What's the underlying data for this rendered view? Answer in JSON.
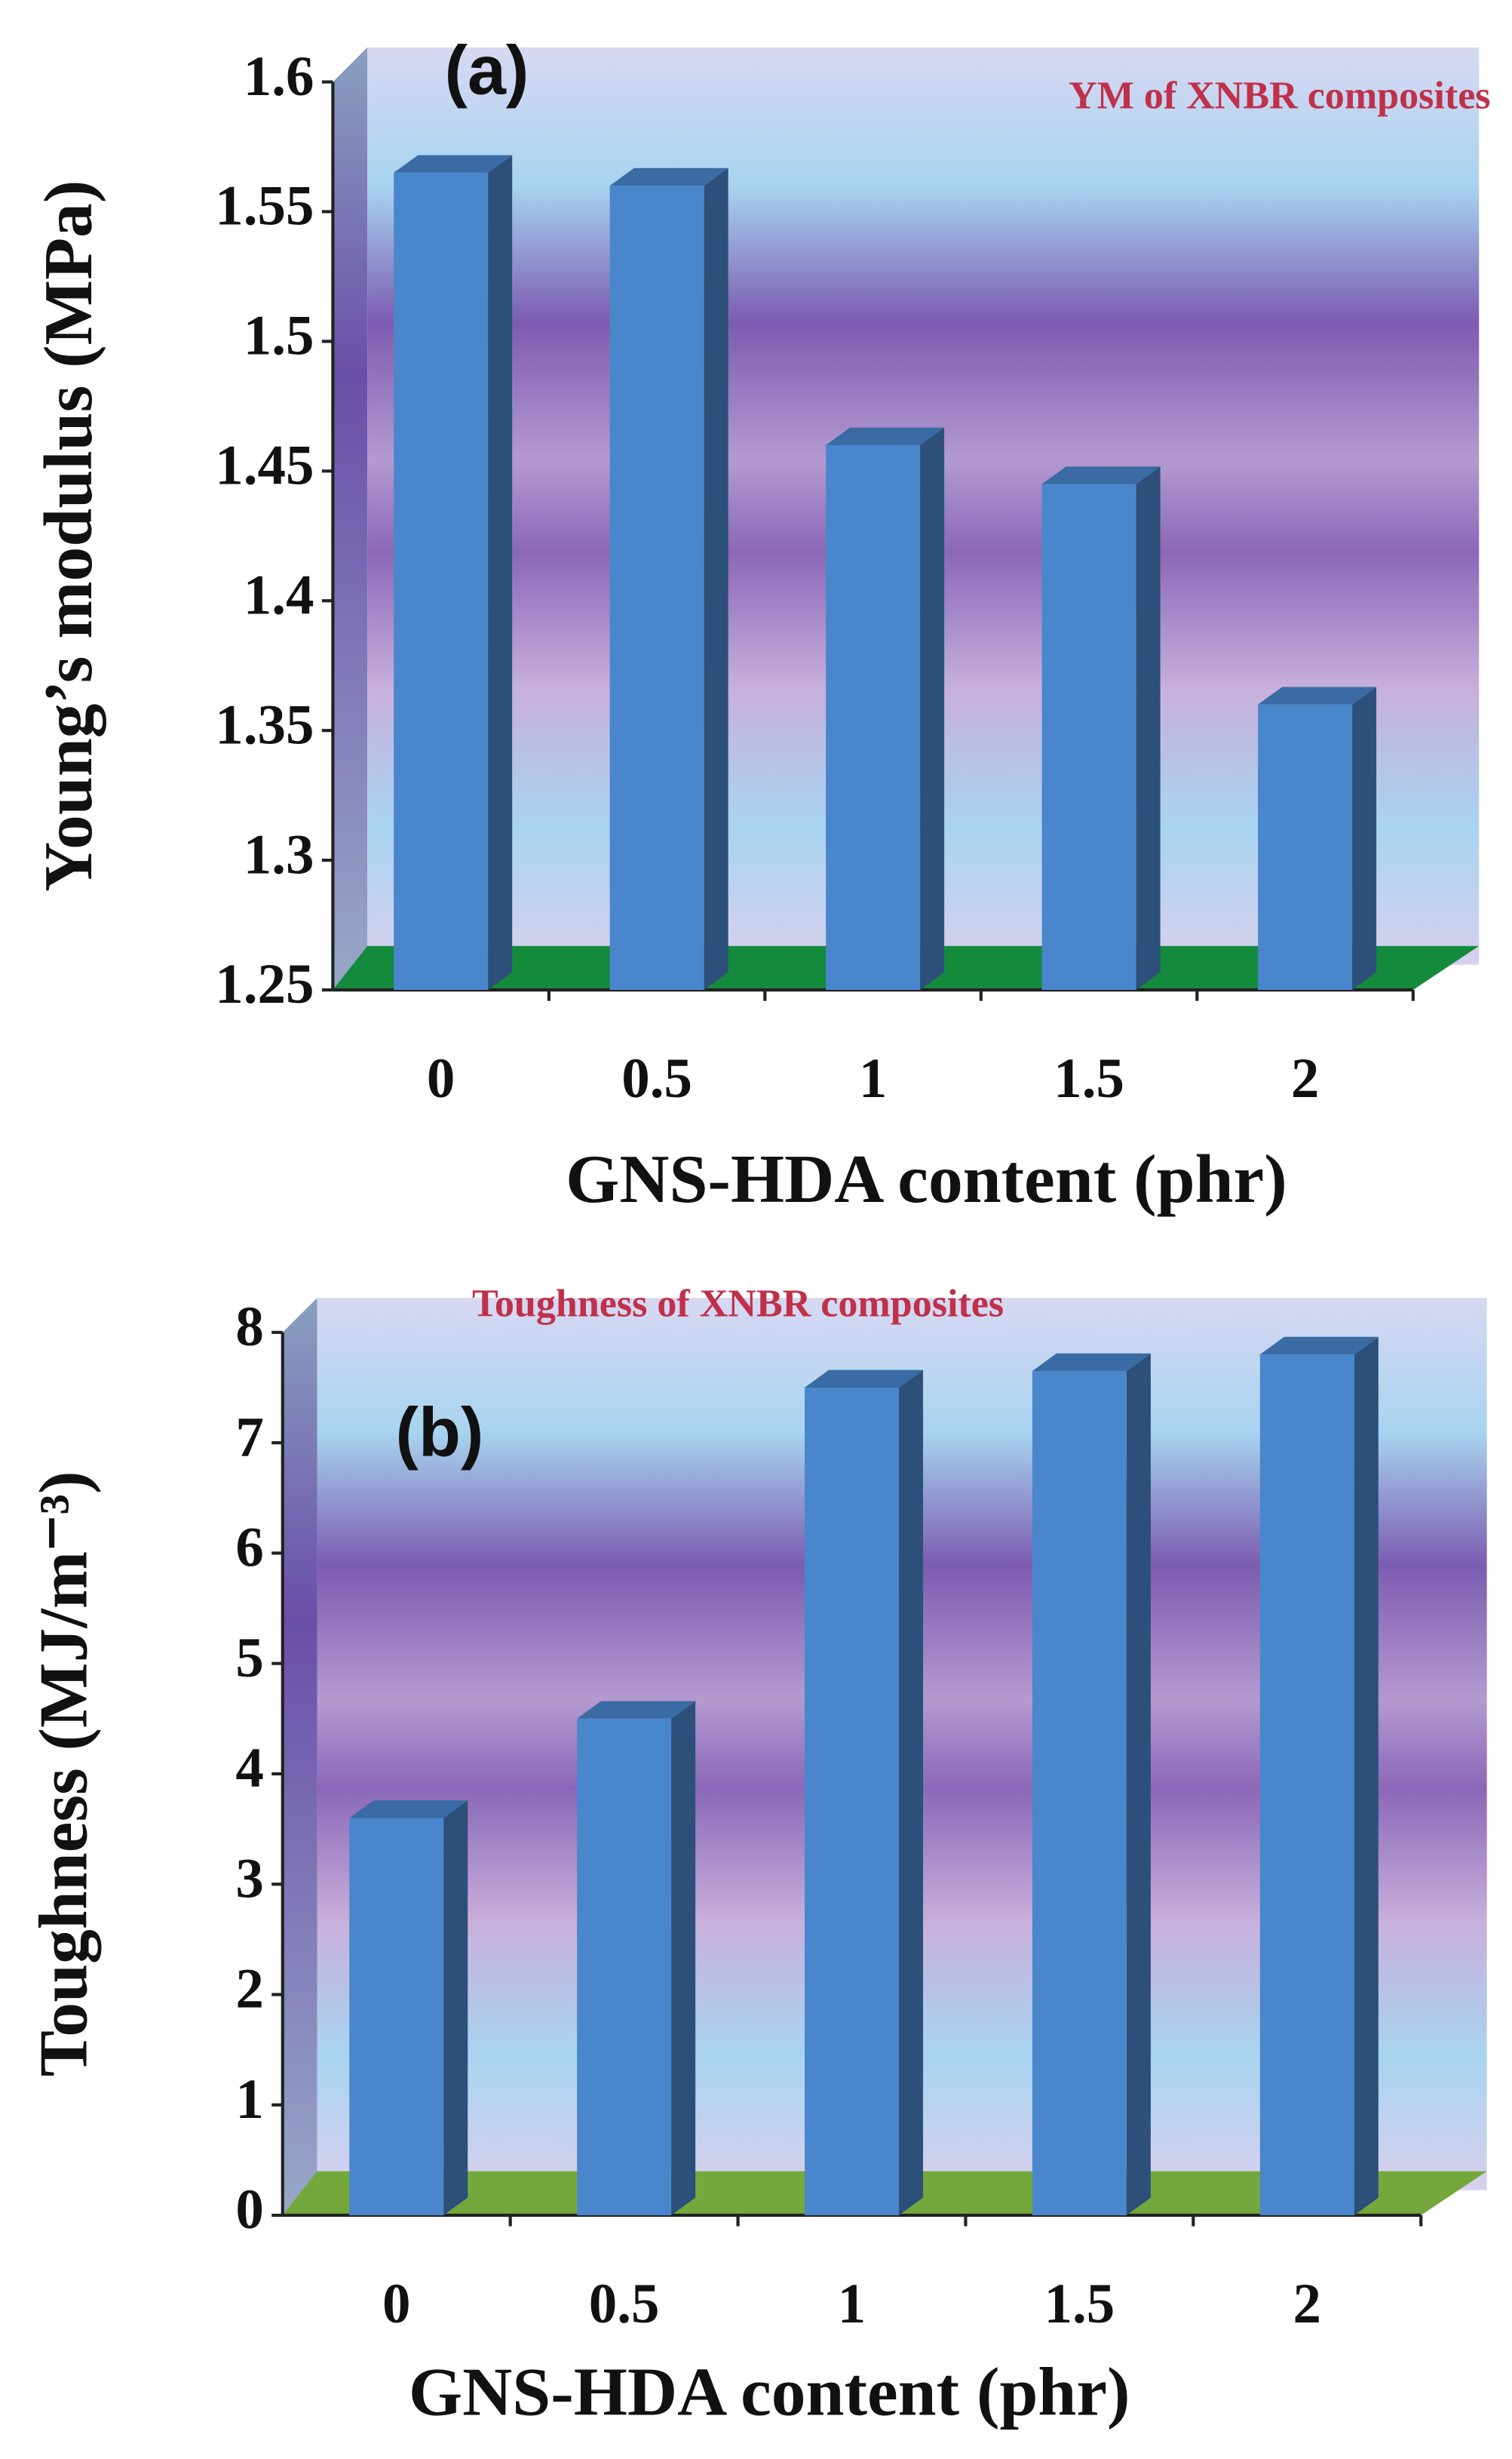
{
  "chart_data": [
    {
      "type": "bar",
      "title": "YM of XNBR composites",
      "panel_label": "(a)",
      "y_label": "Young’s modulus (MPa)",
      "x_label": "GNS-HDA content (phr)",
      "categories": [
        "0",
        "0.5",
        "1",
        "1.5",
        "2"
      ],
      "values": [
        1.565,
        1.56,
        1.46,
        1.445,
        1.36
      ],
      "color": "#4a86cc",
      "ylim": [
        1.25,
        1.6
      ],
      "yticks": [
        1.25,
        1.3,
        1.35,
        1.4,
        1.45,
        1.5,
        1.55,
        1.6
      ]
    },
    {
      "type": "bar",
      "title": "Toughness of XNBR composites",
      "panel_label": "(b)",
      "y_label": "Toughness (MJ/m⁻³)",
      "x_label": "GNS-HDA content (phr)",
      "categories": [
        "0",
        "0.5",
        "1",
        "1.5",
        "2"
      ],
      "values": [
        3.6,
        4.5,
        7.5,
        7.65,
        7.8
      ],
      "color": "#4a86cc",
      "ylim": [
        0,
        8
      ],
      "yticks": [
        0,
        1,
        2,
        3,
        4,
        5,
        6,
        7,
        8
      ]
    }
  ]
}
